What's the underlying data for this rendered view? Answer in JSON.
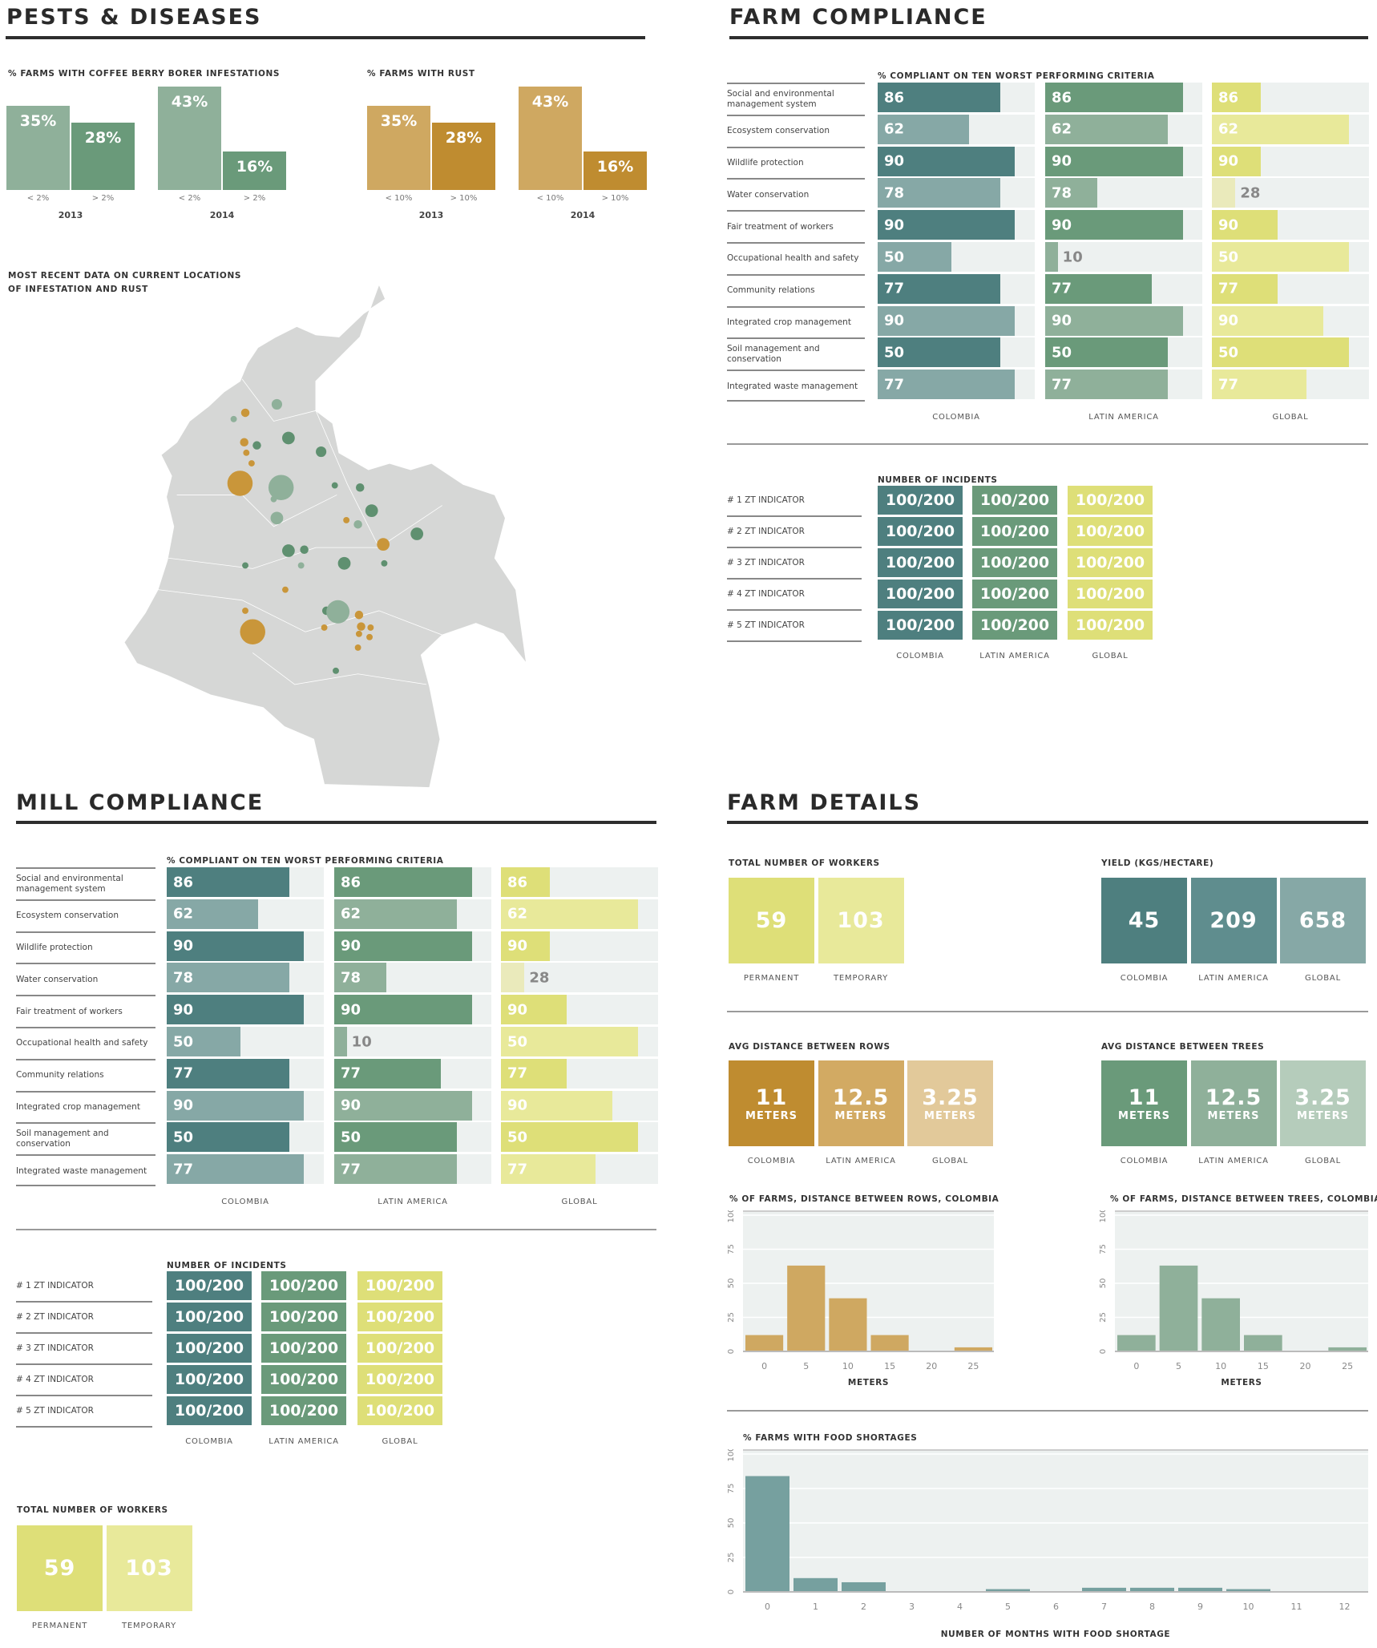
{
  "pests": {
    "title": "PESTS & DISEASES",
    "borer": {
      "title": "% FARMS WITH COFFEE BERRY BORER INFESTATIONS",
      "groups": [
        {
          "year": "2013",
          "bars": [
            {
              "cat": "< 2%",
              "value": 35,
              "label": "35%"
            },
            {
              "cat": "> 2%",
              "value": 28,
              "label": "28%"
            }
          ]
        },
        {
          "year": "2014",
          "bars": [
            {
              "cat": "< 2%",
              "value": 43,
              "label": "43%"
            },
            {
              "cat": "> 2%",
              "value": 16,
              "label": "16%"
            }
          ]
        }
      ],
      "colors": [
        "#8fb09a",
        "#6a9a7a"
      ]
    },
    "rust": {
      "title": "% FARMS WITH RUST",
      "groups": [
        {
          "year": "2013",
          "bars": [
            {
              "cat": "< 10%",
              "value": 35,
              "label": "35%"
            },
            {
              "cat": "> 10%",
              "value": 28,
              "label": "28%"
            }
          ]
        },
        {
          "year": "2014",
          "bars": [
            {
              "cat": "< 10%",
              "value": 43,
              "label": "43%"
            },
            {
              "cat": "> 10%",
              "value": 16,
              "label": "16%"
            }
          ]
        }
      ],
      "colors": [
        "#cfa861",
        "#bf8c30"
      ]
    },
    "map_title_1": "MOST RECENT DATA ON CURRENT LOCATIONS",
    "map_title_2": "OF INFESTATION AND RUST"
  },
  "farm_compliance": {
    "title": "FARM COMPLIANCE",
    "subtitle": "% COMPLIANT ON TEN WORST PERFORMING CRITERIA",
    "criteria": [
      "Social and environmental management system",
      "Ecosystem conservation",
      "Wildlife protection",
      "Water conservation",
      "Fair treatment of workers",
      "Occupational health and safety",
      "Community relations",
      "Integrated crop management",
      "Soil management and conservation",
      "Integrated waste management"
    ],
    "regions": [
      {
        "name": "COLOMBIA",
        "values": [
          86,
          62,
          90,
          78,
          90,
          50,
          77,
          90,
          50,
          77
        ],
        "fill": [
          0.78,
          0.58,
          0.87,
          0.78,
          0.87,
          0.47,
          0.78,
          0.87,
          0.78,
          0.87
        ],
        "colors": [
          "#4e7f7f",
          "#86a8a6"
        ]
      },
      {
        "name": "LATIN AMERICA",
        "values": [
          86,
          62,
          90,
          78,
          90,
          10,
          77,
          90,
          50,
          77
        ],
        "fill": [
          0.88,
          0.78,
          0.88,
          0.33,
          0.88,
          0.08,
          0.68,
          0.88,
          0.78,
          0.78
        ],
        "colors": [
          "#6a9a7a",
          "#8fb09a"
        ]
      },
      {
        "name": "GLOBAL",
        "values": [
          86,
          62,
          90,
          28,
          90,
          50,
          77,
          90,
          50,
          77
        ],
        "fill": [
          0.31,
          0.87,
          0.31,
          0.15,
          0.42,
          0.87,
          0.42,
          0.71,
          0.87,
          0.6
        ],
        "colors": [
          "#dedf78",
          "#e8e99a"
        ]
      }
    ],
    "incidents": {
      "title": "NUMBER OF INCIDENTS",
      "rows": [
        "# 1 ZT INDICATOR",
        "# 2 ZT INDICATOR",
        "# 3 ZT INDICATOR",
        "# 4 ZT INDICATOR",
        "# 5 ZT INDICATOR"
      ],
      "value": "100/200",
      "regions": [
        "COLOMBIA",
        "LATIN AMERICA",
        "GLOBAL"
      ],
      "colors": [
        "#4e7f7f",
        "#6a9a7a",
        "#dedf78"
      ]
    }
  },
  "mill_compliance": {
    "title": "MILL COMPLIANCE",
    "subtitle": "% COMPLIANT ON TEN WORST PERFORMING CRITERIA",
    "criteria": [
      "Social and environmental management system",
      "Ecosystem conservation",
      "Wildlife protection",
      "Water conservation",
      "Fair treatment of workers",
      "Occupational health and safety",
      "Community relations",
      "Integrated crop management",
      "Soil management and conservation",
      "Integrated waste management"
    ],
    "regions": [
      {
        "name": "COLOMBIA",
        "values": [
          86,
          62,
          90,
          78,
          90,
          50,
          77,
          90,
          50,
          77
        ],
        "fill": [
          0.78,
          0.58,
          0.87,
          0.78,
          0.87,
          0.47,
          0.78,
          0.87,
          0.78,
          0.87
        ],
        "colors": [
          "#4e7f7f",
          "#86a8a6"
        ]
      },
      {
        "name": "LATIN AMERICA",
        "values": [
          86,
          62,
          90,
          78,
          90,
          10,
          77,
          90,
          50,
          77
        ],
        "fill": [
          0.88,
          0.78,
          0.88,
          0.33,
          0.88,
          0.08,
          0.68,
          0.88,
          0.78,
          0.78
        ],
        "colors": [
          "#6a9a7a",
          "#8fb09a"
        ]
      },
      {
        "name": "GLOBAL",
        "values": [
          86,
          62,
          90,
          28,
          90,
          50,
          77,
          90,
          50,
          77
        ],
        "fill": [
          0.31,
          0.87,
          0.31,
          0.15,
          0.42,
          0.87,
          0.42,
          0.71,
          0.87,
          0.6
        ],
        "colors": [
          "#dedf78",
          "#e8e99a"
        ]
      }
    ],
    "incidents": {
      "title": "NUMBER OF INCIDENTS",
      "rows": [
        "# 1 ZT INDICATOR",
        "# 2 ZT INDICATOR",
        "# 3 ZT INDICATOR",
        "# 4 ZT INDICATOR",
        "# 5 ZT INDICATOR"
      ],
      "value": "100/200",
      "regions": [
        "COLOMBIA",
        "LATIN AMERICA",
        "GLOBAL"
      ],
      "colors": [
        "#4e7f7f",
        "#6a9a7a",
        "#dedf78"
      ]
    },
    "workers": {
      "title": "TOTAL NUMBER OF WORKERS",
      "items": [
        {
          "value": "59",
          "label": "PERMANENT",
          "color": "#dedf78"
        },
        {
          "value": "103",
          "label": "TEMPORARY",
          "color": "#e8e99a"
        }
      ]
    }
  },
  "farm_details": {
    "title": "FARM DETAILS",
    "workers": {
      "title": "TOTAL NUMBER OF WORKERS",
      "items": [
        {
          "value": "59",
          "label": "PERMANENT",
          "color": "#dedf78"
        },
        {
          "value": "103",
          "label": "TEMPORARY",
          "color": "#e8e99a"
        }
      ]
    },
    "yield": {
      "title": "YIELD (KGS/HECTARE)",
      "items": [
        {
          "value": "45",
          "label": "COLOMBIA",
          "color": "#4e7f7f"
        },
        {
          "value": "209",
          "label": "LATIN AMERICA",
          "color": "#5f8d8e"
        },
        {
          "value": "658",
          "label": "GLOBAL",
          "color": "#86a8a6"
        }
      ]
    },
    "rows_dist": {
      "title": "AVG DISTANCE BETWEEN ROWS",
      "unit": "METERS",
      "items": [
        {
          "value": "11",
          "label": "COLOMBIA",
          "color": "#bf8c30"
        },
        {
          "value": "12.5",
          "label": "LATIN AMERICA",
          "color": "#d2aa63"
        },
        {
          "value": "3.25",
          "label": "GLOBAL",
          "color": "#e2c99a"
        }
      ]
    },
    "trees_dist": {
      "title": "AVG DISTANCE BETWEEN TREES",
      "unit": "METERS",
      "items": [
        {
          "value": "11",
          "label": "COLOMBIA",
          "color": "#6a9a7a"
        },
        {
          "value": "12.5",
          "label": "LATIN AMERICA",
          "color": "#8fb09a"
        },
        {
          "value": "3.25",
          "label": "GLOBAL",
          "color": "#b5ccbb"
        }
      ]
    }
  },
  "chart_data": [
    {
      "type": "bar",
      "title": "% OF FARMS, DISTANCE BETWEEN ROWS, COLOMBIA",
      "xlabel": "METERS",
      "ylabel": "",
      "categories": [
        "0",
        "5",
        "10",
        "15",
        "20",
        "25"
      ],
      "values": [
        12,
        63,
        39,
        12,
        0,
        3
      ],
      "ylim": [
        0,
        100
      ],
      "yticks": [
        "0",
        "25",
        "50",
        "75",
        "100"
      ],
      "color": "#cfa861",
      "grid": true
    },
    {
      "type": "bar",
      "title": "% OF FARMS, DISTANCE BETWEEN TREES, COLOMBIA",
      "xlabel": "METERS",
      "ylabel": "",
      "categories": [
        "0",
        "5",
        "10",
        "15",
        "20",
        "25"
      ],
      "values": [
        12,
        63,
        39,
        12,
        0,
        3
      ],
      "ylim": [
        0,
        100
      ],
      "yticks": [
        "0",
        "25",
        "50",
        "75",
        "100"
      ],
      "color": "#8fb09a",
      "grid": true
    },
    {
      "type": "bar",
      "title": "% FARMS WITH FOOD SHORTAGES",
      "xlabel": "NUMBER OF MONTHS WITH FOOD SHORTAGE",
      "ylabel": "",
      "categories": [
        "0",
        "1",
        "2",
        "3",
        "4",
        "5",
        "6",
        "7",
        "8",
        "9",
        "10",
        "11",
        "12"
      ],
      "values": [
        84,
        10,
        7,
        0,
        0,
        2,
        0,
        3,
        3,
        3,
        2,
        0,
        0
      ],
      "ylim": [
        0,
        100
      ],
      "yticks": [
        "0",
        "25",
        "50",
        "75",
        "100"
      ],
      "color": "#76a09f",
      "grid": true
    }
  ]
}
